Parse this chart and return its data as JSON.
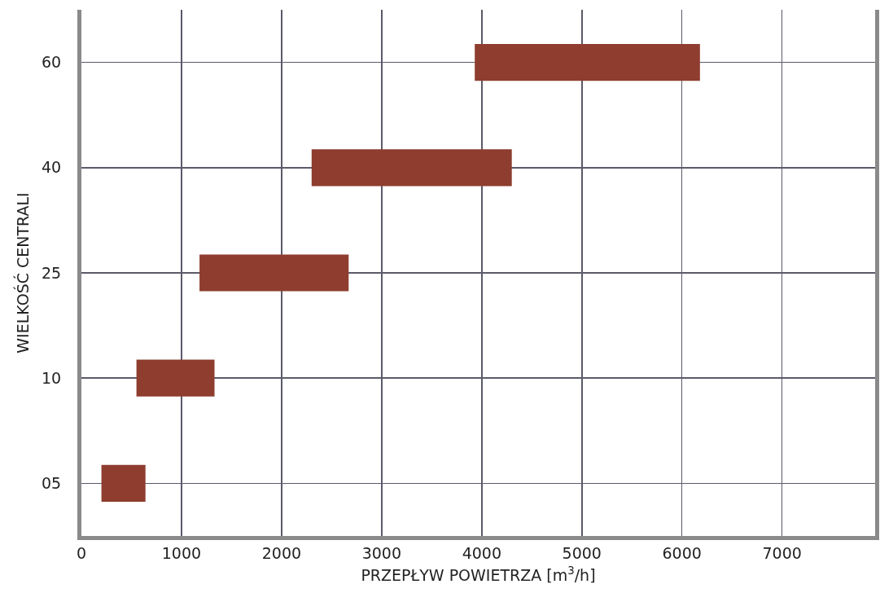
{
  "chart_data": {
    "type": "bar",
    "orientation": "horizontal",
    "xlabel": "PRZEPŁYW POWIETRZA [m$^{3}$/h]",
    "ylabel": "WIELKOŚĆ CENTRALI",
    "categories": [
      "60",
      "40",
      "25",
      "10",
      "05"
    ],
    "base": [
      3930,
      2300,
      1180,
      550,
      200
    ],
    "values": [
      2250,
      2000,
      1490,
      780,
      440
    ],
    "color": "#8e3d2e",
    "xlim": [
      0,
      7930
    ],
    "xticks": [
      0,
      1000,
      2000,
      3000,
      4000,
      5000,
      6000,
      7000
    ],
    "grid": true
  }
}
